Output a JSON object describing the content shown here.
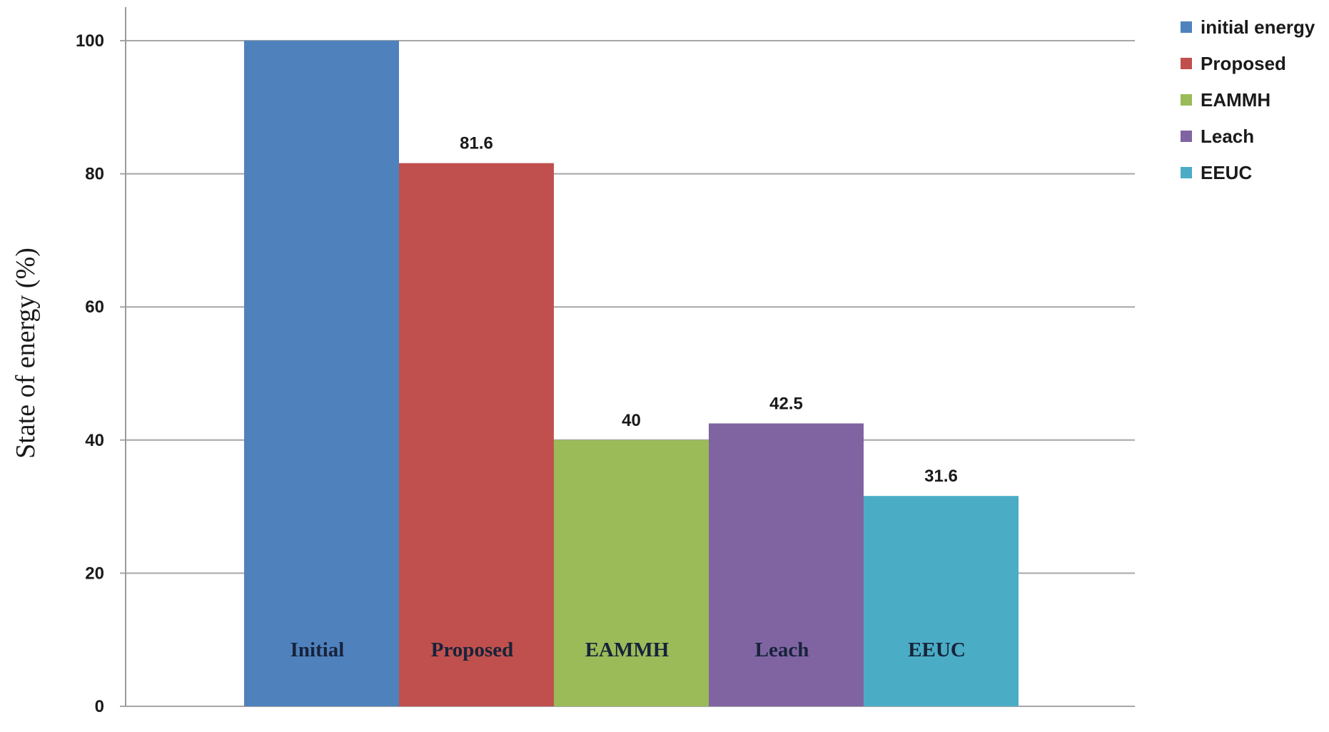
{
  "chart_data": {
    "type": "bar",
    "categories": [
      "Initial",
      "Proposed",
      "EAMMH",
      "Leach",
      "EEUC"
    ],
    "series": [
      {
        "name": "initial energy",
        "values": [
          100,
          null,
          null,
          null,
          null
        ],
        "color": "#4f81bd"
      },
      {
        "name": "Proposed",
        "values": [
          null,
          81.6,
          null,
          null,
          null
        ],
        "color": "#c0504d"
      },
      {
        "name": "EAMMH",
        "values": [
          null,
          null,
          40,
          null,
          null
        ],
        "color": "#9bbb59"
      },
      {
        "name": "Leach",
        "values": [
          null,
          null,
          null,
          42.5,
          null
        ],
        "color": "#8064a2"
      },
      {
        "name": "EEUC",
        "values": [
          null,
          null,
          null,
          null,
          31.6
        ],
        "color": "#4bacc6"
      }
    ],
    "data_labels": [
      "",
      "81.6",
      "40",
      "42.5",
      "31.6"
    ],
    "ylabel": "State of energy (%)",
    "xlabel": "",
    "ylim": [
      0,
      100
    ],
    "yticks": [
      0,
      20,
      40,
      60,
      80,
      100
    ],
    "grid": true,
    "legend_position": "top-right"
  }
}
